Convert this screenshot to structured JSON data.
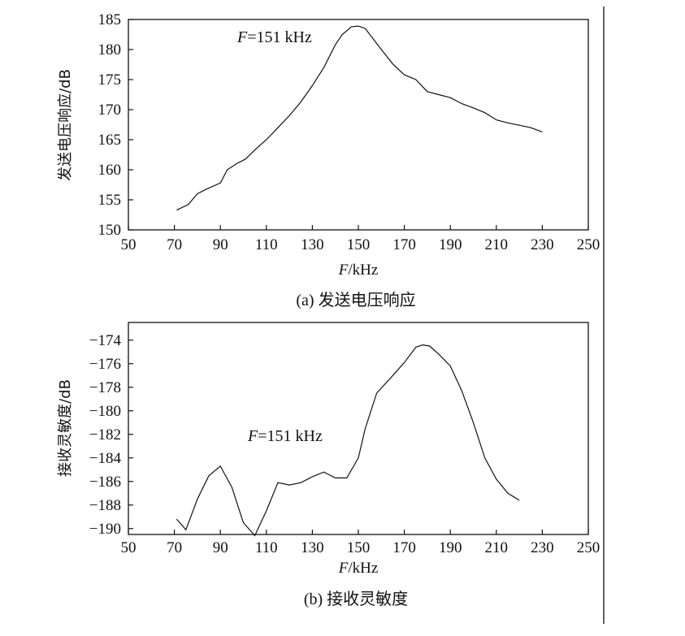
{
  "chart_data": [
    {
      "type": "line",
      "caption": "(a) 发送电压响应",
      "xlabel": "F/kHz",
      "ylabel": "发送电压响应/dB",
      "annotation": "F=151 kHz",
      "xlim": [
        50,
        250
      ],
      "ylim": [
        150,
        185
      ],
      "xticks": [
        50,
        70,
        90,
        110,
        130,
        150,
        170,
        190,
        210,
        230,
        250
      ],
      "yticks": [
        150,
        155,
        160,
        165,
        170,
        175,
        180,
        185
      ],
      "grid": false,
      "series": [
        {
          "x": [
            71,
            76,
            80,
            84,
            90,
            93,
            97,
            101,
            105,
            110,
            115,
            120,
            125,
            130,
            135,
            140,
            143,
            147,
            150,
            153,
            156,
            160,
            165,
            170,
            175,
            180,
            185,
            190,
            195,
            200,
            205,
            210,
            215,
            220,
            225,
            230
          ],
          "y": [
            153.3,
            154.2,
            156.0,
            156.8,
            157.8,
            160.0,
            161.0,
            161.8,
            163.3,
            165.0,
            167.0,
            169.0,
            171.3,
            174.0,
            177.0,
            180.8,
            182.5,
            183.8,
            183.9,
            183.5,
            182.0,
            180.0,
            177.6,
            175.8,
            175.0,
            173.0,
            172.5,
            172.0,
            171.0,
            170.3,
            169.5,
            168.3,
            167.8,
            167.4,
            167.0,
            166.3
          ]
        }
      ]
    },
    {
      "type": "line",
      "caption": "(b) 接收灵敏度",
      "xlabel": "F/kHz",
      "ylabel": "接收灵敏度/dB",
      "annotation": "F=151 kHz",
      "xlim": [
        50,
        250
      ],
      "ylim": [
        -190.5,
        -172.5
      ],
      "xticks": [
        50,
        70,
        90,
        110,
        130,
        150,
        170,
        190,
        210,
        230,
        250
      ],
      "yticks": [
        -174,
        -176,
        -178,
        -180,
        -182,
        -184,
        -186,
        -188,
        -190
      ],
      "grid": false,
      "series": [
        {
          "x": [
            71,
            75,
            80,
            85,
            90,
            95,
            100,
            105,
            110,
            115,
            120,
            125,
            130,
            135,
            140,
            145,
            150,
            153,
            158,
            165,
            170,
            175,
            178,
            181,
            185,
            190,
            195,
            200,
            205,
            210,
            215,
            220
          ],
          "y": [
            -189.2,
            -190.1,
            -187.5,
            -185.5,
            -184.7,
            -186.5,
            -189.5,
            -190.6,
            -188.5,
            -186.1,
            -186.3,
            -186.1,
            -185.6,
            -185.2,
            -185.7,
            -185.7,
            -184.0,
            -181.5,
            -178.5,
            -177.0,
            -175.9,
            -174.6,
            -174.4,
            -174.5,
            -175.2,
            -176.2,
            -178.3,
            -181.0,
            -184.0,
            -185.8,
            -187.0,
            -187.6
          ]
        }
      ]
    }
  ]
}
